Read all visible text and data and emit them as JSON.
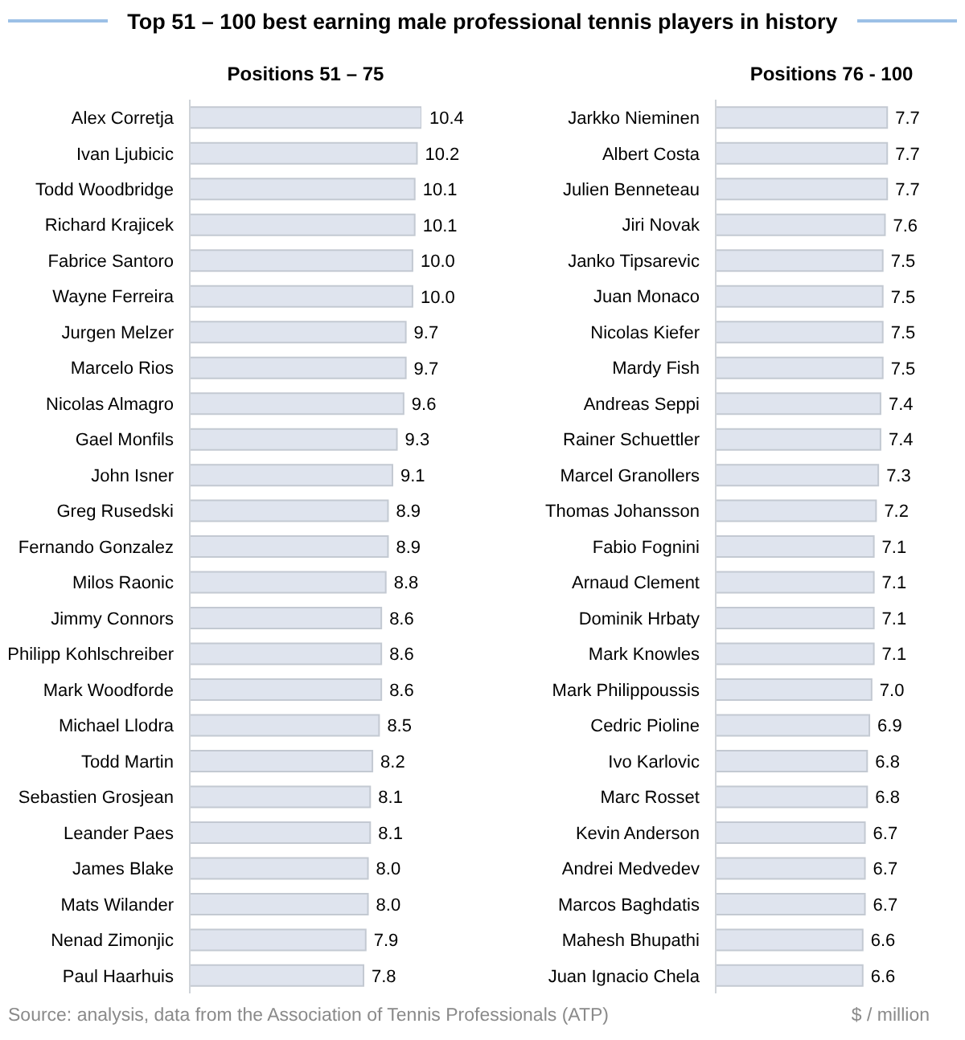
{
  "chart_data": [
    {
      "type": "bar",
      "orientation": "horizontal",
      "title": "Top 51 – 100 best earning male professional tennis players in history",
      "subtitle": "Positions 51 – 75",
      "categories": [
        "Alex Corretja",
        "Ivan Ljubicic",
        "Todd Woodbridge",
        "Richard Krajicek",
        "Fabrice Santoro",
        "Wayne Ferreira",
        "Jurgen Melzer",
        "Marcelo Rios",
        "Nicolas Almagro",
        "Gael Monfils",
        "John Isner",
        "Greg Rusedski",
        "Fernando Gonzalez",
        "Milos Raonic",
        "Jimmy Connors",
        "Philipp Kohlschreiber",
        "Mark Woodforde",
        "Michael Llodra",
        "Todd Martin",
        "Sebastien Grosjean",
        "Leander Paes",
        "James Blake",
        "Mats Wilander",
        "Nenad Zimonjic",
        "Paul Haarhuis"
      ],
      "values": [
        10.4,
        10.2,
        10.1,
        10.1,
        10.0,
        10.0,
        9.7,
        9.7,
        9.6,
        9.3,
        9.1,
        8.9,
        8.9,
        8.8,
        8.6,
        8.6,
        8.6,
        8.5,
        8.2,
        8.1,
        8.1,
        8.0,
        8.0,
        7.9,
        7.8
      ],
      "value_labels": [
        "10.4",
        "10.2",
        "10.1",
        "10.1",
        "10.0",
        "10.0",
        "9.7",
        "9.7",
        "9.6",
        "9.3",
        "9.1",
        "8.9",
        "8.9",
        "8.8",
        "8.6",
        "8.6",
        "8.6",
        "8.5",
        "8.2",
        "8.1",
        "8.1",
        "8.0",
        "8.0",
        "7.9",
        "7.8"
      ],
      "color": "#dfe4ee",
      "annotations": [
        "Source: analysis, data from the Association of Tennis Professionals (ATP)"
      ]
    },
    {
      "type": "bar",
      "orientation": "horizontal",
      "subtitle": "Positions 76 - 100",
      "categories": [
        "Jarkko Nieminen",
        "Albert Costa",
        "Julien Benneteau",
        "Jiri Novak",
        "Janko Tipsarevic",
        "Juan Monaco",
        "Nicolas Kiefer",
        "Mardy Fish",
        "Andreas Seppi",
        "Rainer Schuettler",
        "Marcel Granollers",
        "Thomas Johansson",
        "Fabio Fognini",
        "Arnaud Clement",
        "Dominik Hrbaty",
        "Mark Knowles",
        "Mark Philippoussis",
        "Cedric Pioline",
        "Ivo Karlovic",
        "Marc Rosset",
        "Kevin Anderson",
        "Andrei Medvedev",
        "Marcos Baghdatis",
        "Mahesh Bhupathi",
        "Juan Ignacio Chela"
      ],
      "values": [
        7.7,
        7.7,
        7.7,
        7.6,
        7.5,
        7.5,
        7.5,
        7.5,
        7.4,
        7.4,
        7.3,
        7.2,
        7.1,
        7.1,
        7.1,
        7.1,
        7.0,
        6.9,
        6.8,
        6.8,
        6.7,
        6.7,
        6.7,
        6.6,
        6.6
      ],
      "value_labels": [
        "7.7",
        "7.7",
        "7.7",
        "7.6",
        "7.5",
        "7.5",
        "7.5",
        "7.5",
        "7.4",
        "7.4",
        "7.3",
        "7.2",
        "7.1",
        "7.1",
        "7.1",
        "7.1",
        "7.0",
        "6.9",
        "6.8",
        "6.8",
        "6.7",
        "6.7",
        "6.7",
        "6.6",
        "6.6"
      ],
      "color": "#dfe4ee",
      "annotations": [
        "$ / million"
      ]
    }
  ]
}
